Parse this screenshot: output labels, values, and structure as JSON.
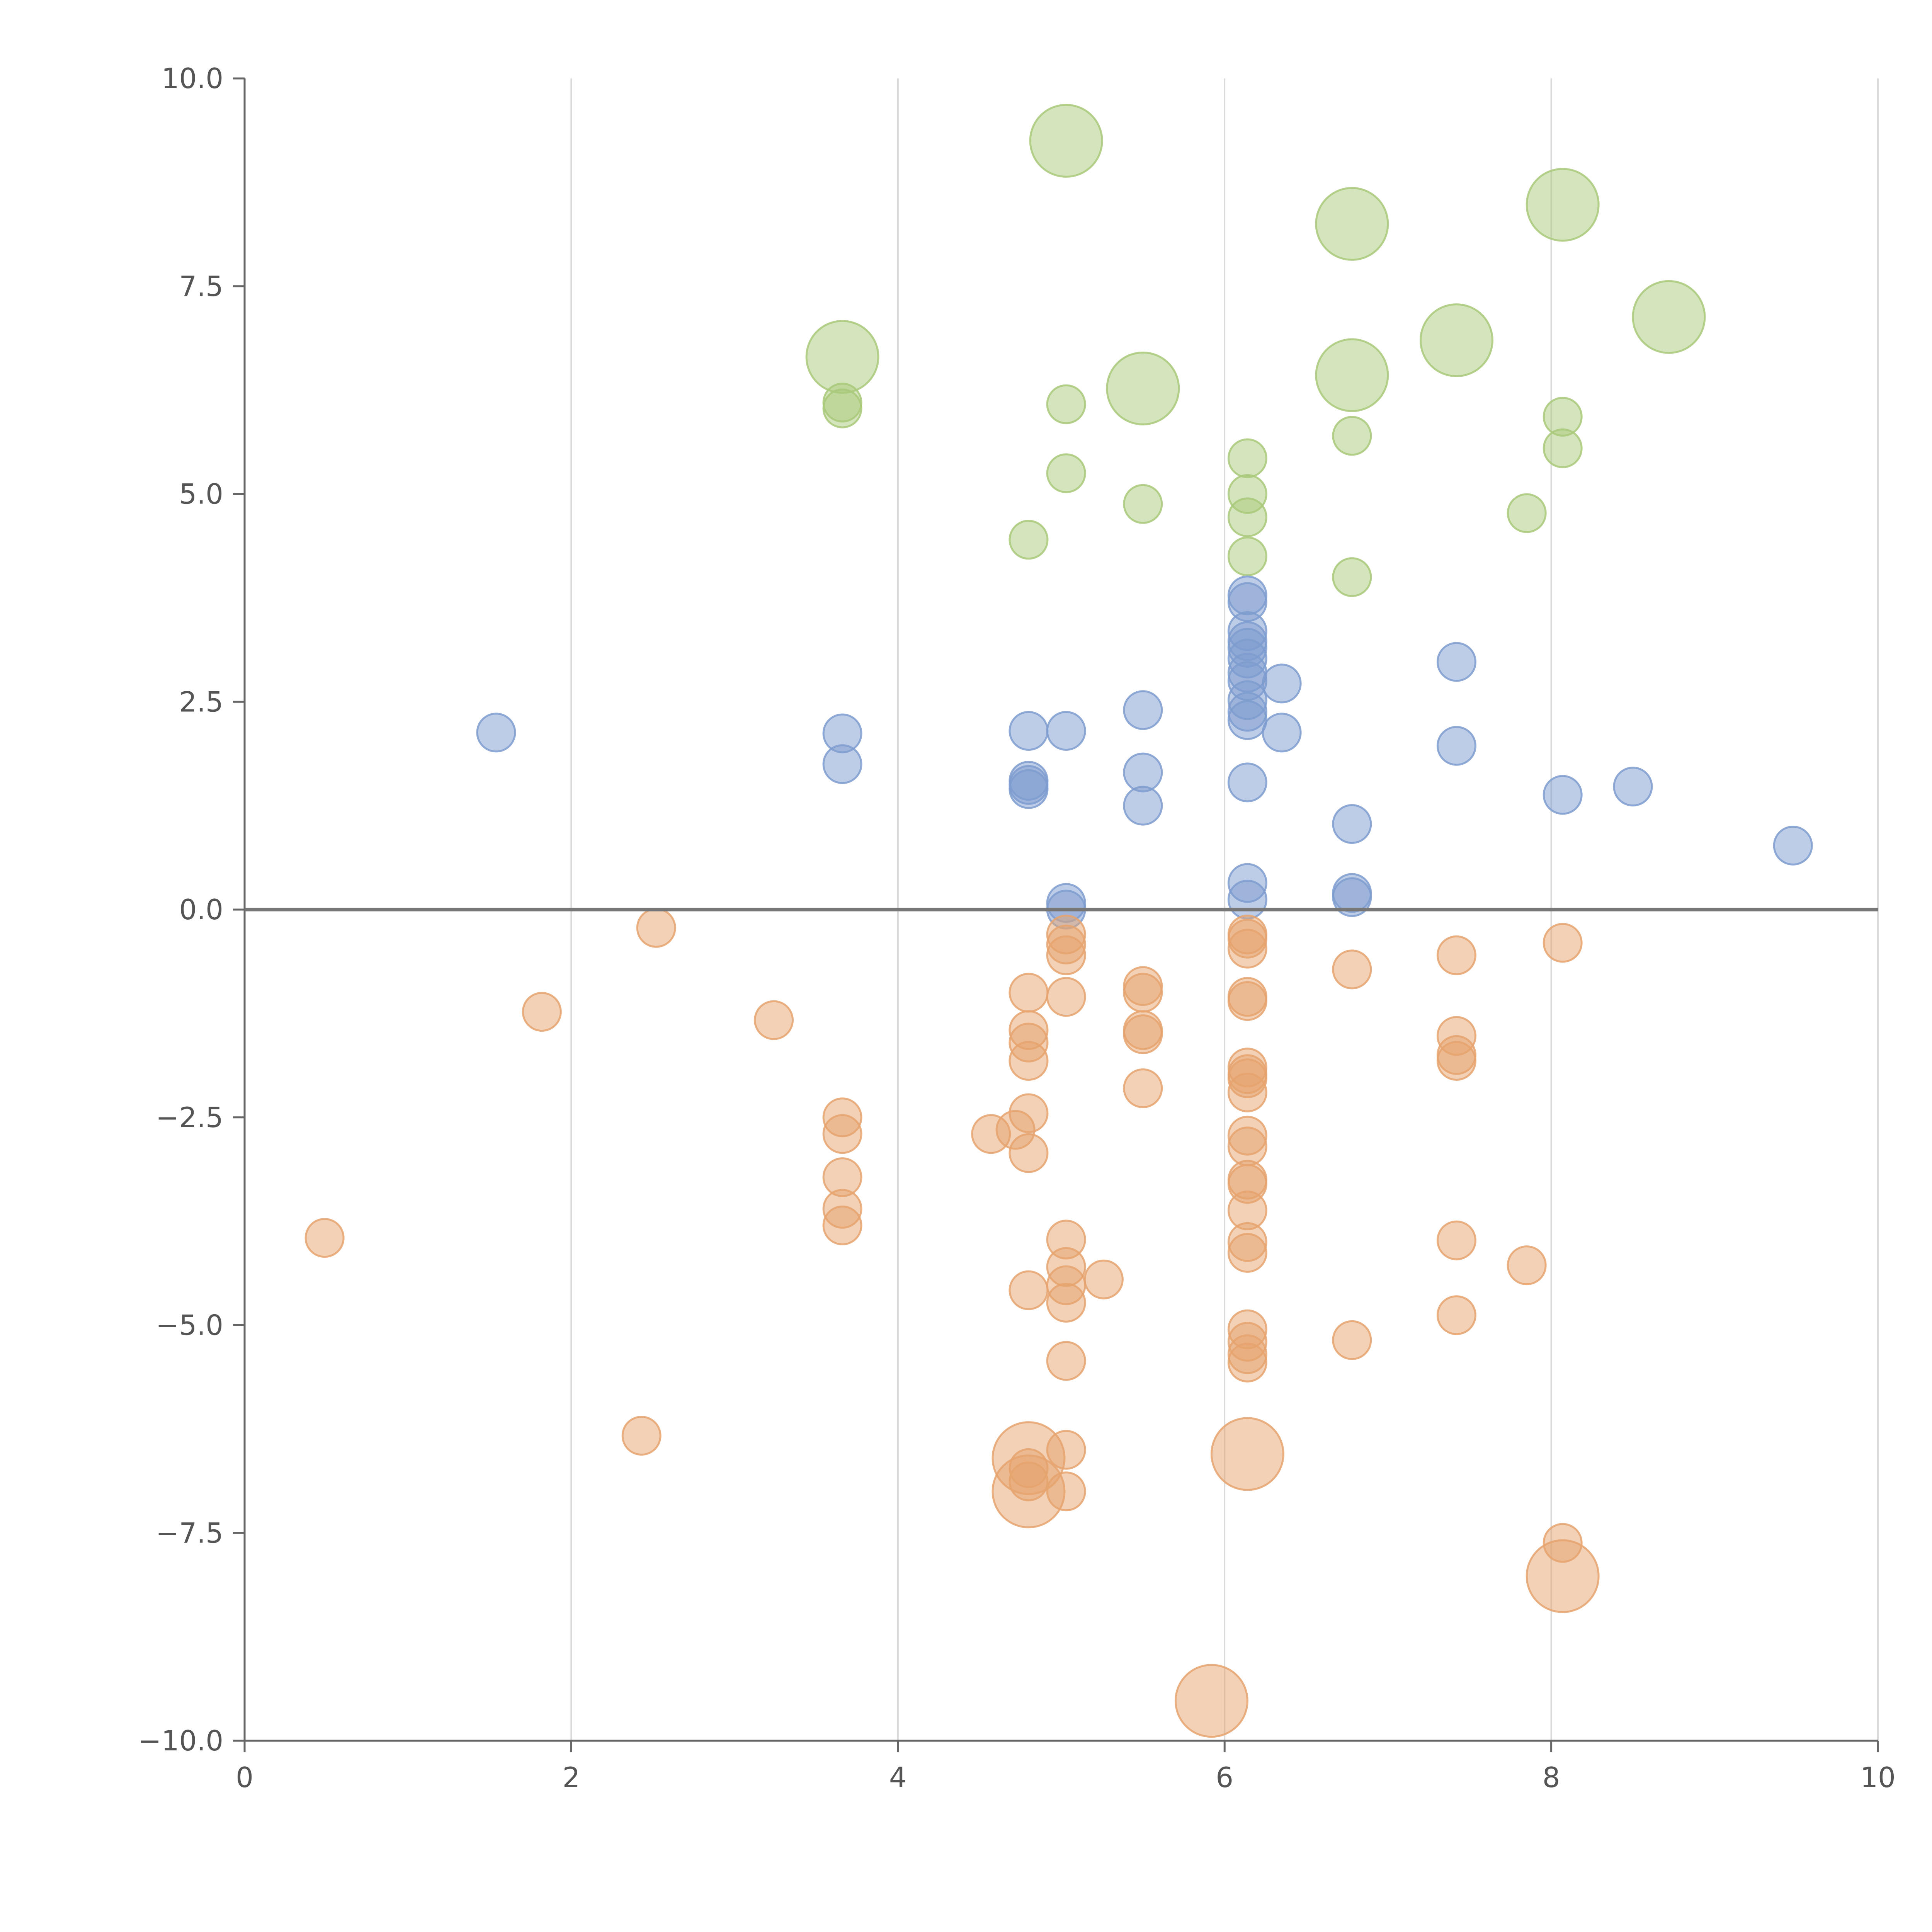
{
  "chart_data": {
    "type": "scatter",
    "subtype": "bubble",
    "title": "",
    "xlabel": "",
    "ylabel": "",
    "xlim": [
      0,
      10
    ],
    "ylim": [
      -10,
      10
    ],
    "x_ticks": [
      0,
      2,
      4,
      6,
      8,
      10
    ],
    "x_tick_labels": [
      "0",
      "2",
      "4",
      "6",
      "8",
      "10"
    ],
    "y_ticks": [
      -10,
      -7.5,
      -5,
      -2.5,
      0,
      2.5,
      5,
      7.5,
      10
    ],
    "y_tick_labels": [
      "−10.0",
      "−7.5",
      "−5.0",
      "−2.5",
      "0.0",
      "2.5",
      "5.0",
      "7.5",
      "10.0"
    ],
    "grid": "vertical",
    "legend": "none",
    "reference_line": {
      "y": 0
    },
    "series": [
      {
        "name": "green",
        "color": "#a9c97a",
        "points": [
          {
            "x": 5.03,
            "y": 9.25,
            "size": 3
          },
          {
            "x": 6.78,
            "y": 8.25,
            "size": 3
          },
          {
            "x": 8.07,
            "y": 8.48,
            "size": 3
          },
          {
            "x": 8.72,
            "y": 7.13,
            "size": 3
          },
          {
            "x": 7.42,
            "y": 6.85,
            "size": 3
          },
          {
            "x": 6.78,
            "y": 6.43,
            "size": 3
          },
          {
            "x": 5.5,
            "y": 6.27,
            "size": 3
          },
          {
            "x": 3.66,
            "y": 6.65,
            "size": 3
          },
          {
            "x": 3.66,
            "y": 6.1,
            "size": 1
          },
          {
            "x": 3.66,
            "y": 6.03,
            "size": 1
          },
          {
            "x": 5.03,
            "y": 6.08,
            "size": 1
          },
          {
            "x": 8.07,
            "y": 5.93,
            "size": 1
          },
          {
            "x": 8.07,
            "y": 5.55,
            "size": 1
          },
          {
            "x": 6.78,
            "y": 5.7,
            "size": 1
          },
          {
            "x": 6.14,
            "y": 5.43,
            "size": 1
          },
          {
            "x": 5.03,
            "y": 5.25,
            "size": 1
          },
          {
            "x": 6.14,
            "y": 5.0,
            "size": 1
          },
          {
            "x": 5.5,
            "y": 4.88,
            "size": 1
          },
          {
            "x": 7.85,
            "y": 4.77,
            "size": 1
          },
          {
            "x": 6.14,
            "y": 4.72,
            "size": 1
          },
          {
            "x": 4.8,
            "y": 4.45,
            "size": 1
          },
          {
            "x": 6.14,
            "y": 4.25,
            "size": 1
          },
          {
            "x": 6.78,
            "y": 4.0,
            "size": 1
          }
        ]
      },
      {
        "name": "blue",
        "color": "#7e9ccf",
        "points": [
          {
            "x": 6.14,
            "y": 3.78,
            "size": 1
          },
          {
            "x": 6.14,
            "y": 3.7,
            "size": 1
          },
          {
            "x": 6.14,
            "y": 3.35,
            "size": 1
          },
          {
            "x": 6.14,
            "y": 3.23,
            "size": 1
          },
          {
            "x": 6.14,
            "y": 3.15,
            "size": 1
          },
          {
            "x": 6.14,
            "y": 3.02,
            "size": 1
          },
          {
            "x": 6.14,
            "y": 2.85,
            "size": 1
          },
          {
            "x": 6.14,
            "y": 2.75,
            "size": 1
          },
          {
            "x": 6.14,
            "y": 2.52,
            "size": 1
          },
          {
            "x": 6.14,
            "y": 2.38,
            "size": 1
          },
          {
            "x": 6.14,
            "y": 2.28,
            "size": 1
          },
          {
            "x": 6.35,
            "y": 2.72,
            "size": 1
          },
          {
            "x": 6.35,
            "y": 2.13,
            "size": 1
          },
          {
            "x": 7.42,
            "y": 2.98,
            "size": 1
          },
          {
            "x": 7.42,
            "y": 1.97,
            "size": 1
          },
          {
            "x": 5.5,
            "y": 2.4,
            "size": 1
          },
          {
            "x": 5.5,
            "y": 1.65,
            "size": 1
          },
          {
            "x": 5.5,
            "y": 1.25,
            "size": 1
          },
          {
            "x": 5.03,
            "y": 2.15,
            "size": 1
          },
          {
            "x": 4.8,
            "y": 2.15,
            "size": 1
          },
          {
            "x": 4.8,
            "y": 1.55,
            "size": 1
          },
          {
            "x": 4.8,
            "y": 1.5,
            "size": 1
          },
          {
            "x": 4.8,
            "y": 1.45,
            "size": 1
          },
          {
            "x": 3.66,
            "y": 2.12,
            "size": 1
          },
          {
            "x": 3.66,
            "y": 1.75,
            "size": 1
          },
          {
            "x": 1.54,
            "y": 2.13,
            "size": 1
          },
          {
            "x": 6.14,
            "y": 1.53,
            "size": 1
          },
          {
            "x": 8.07,
            "y": 1.38,
            "size": 1
          },
          {
            "x": 8.5,
            "y": 1.48,
            "size": 1
          },
          {
            "x": 6.78,
            "y": 1.03,
            "size": 1
          },
          {
            "x": 9.48,
            "y": 0.77,
            "size": 1
          },
          {
            "x": 6.14,
            "y": 0.32,
            "size": 1
          },
          {
            "x": 6.14,
            "y": 0.12,
            "size": 1
          },
          {
            "x": 6.78,
            "y": 0.2,
            "size": 1
          },
          {
            "x": 6.78,
            "y": 0.15,
            "size": 1
          },
          {
            "x": 5.03,
            "y": 0.08,
            "size": 1
          },
          {
            "x": 5.03,
            "y": 0.0,
            "size": 1
          }
        ]
      },
      {
        "name": "orange",
        "color": "#e6a36e",
        "points": [
          {
            "x": 2.52,
            "y": -0.22,
            "size": 1
          },
          {
            "x": 1.82,
            "y": -1.23,
            "size": 1
          },
          {
            "x": 3.24,
            "y": -1.33,
            "size": 1
          },
          {
            "x": 0.49,
            "y": -3.95,
            "size": 1
          },
          {
            "x": 2.43,
            "y": -6.33,
            "size": 1
          },
          {
            "x": 3.66,
            "y": -2.5,
            "size": 1
          },
          {
            "x": 3.66,
            "y": -2.7,
            "size": 1
          },
          {
            "x": 3.66,
            "y": -3.22,
            "size": 1
          },
          {
            "x": 3.66,
            "y": -3.6,
            "size": 1
          },
          {
            "x": 3.66,
            "y": -3.8,
            "size": 1
          },
          {
            "x": 4.57,
            "y": -2.7,
            "size": 1
          },
          {
            "x": 4.72,
            "y": -2.65,
            "size": 1
          },
          {
            "x": 4.8,
            "y": -2.45,
            "size": 1
          },
          {
            "x": 4.8,
            "y": -2.93,
            "size": 1
          },
          {
            "x": 4.8,
            "y": -1.0,
            "size": 1
          },
          {
            "x": 4.8,
            "y": -1.45,
            "size": 1
          },
          {
            "x": 4.8,
            "y": -1.6,
            "size": 1
          },
          {
            "x": 4.8,
            "y": -1.82,
            "size": 1
          },
          {
            "x": 4.8,
            "y": -4.58,
            "size": 1
          },
          {
            "x": 5.03,
            "y": -0.3,
            "size": 1
          },
          {
            "x": 5.03,
            "y": -0.42,
            "size": 1
          },
          {
            "x": 5.03,
            "y": -0.55,
            "size": 1
          },
          {
            "x": 5.03,
            "y": -1.05,
            "size": 1
          },
          {
            "x": 5.03,
            "y": -3.97,
            "size": 1
          },
          {
            "x": 5.03,
            "y": -4.3,
            "size": 1
          },
          {
            "x": 5.03,
            "y": -4.52,
            "size": 1
          },
          {
            "x": 5.03,
            "y": -4.73,
            "size": 1
          },
          {
            "x": 5.26,
            "y": -4.45,
            "size": 1
          },
          {
            "x": 5.03,
            "y": -5.43,
            "size": 1
          },
          {
            "x": 5.03,
            "y": -6.5,
            "size": 1
          },
          {
            "x": 5.03,
            "y": -7.0,
            "size": 1
          },
          {
            "x": 5.5,
            "y": -0.92,
            "size": 1
          },
          {
            "x": 5.5,
            "y": -1.0,
            "size": 1
          },
          {
            "x": 5.5,
            "y": -1.45,
            "size": 1
          },
          {
            "x": 5.5,
            "y": -1.5,
            "size": 1
          },
          {
            "x": 5.5,
            "y": -2.15,
            "size": 1
          },
          {
            "x": 6.14,
            "y": -0.3,
            "size": 1
          },
          {
            "x": 6.14,
            "y": -0.35,
            "size": 1
          },
          {
            "x": 6.14,
            "y": -0.47,
            "size": 1
          },
          {
            "x": 6.14,
            "y": -1.05,
            "size": 1
          },
          {
            "x": 6.14,
            "y": -1.1,
            "size": 1
          },
          {
            "x": 6.14,
            "y": -1.9,
            "size": 1
          },
          {
            "x": 6.14,
            "y": -1.98,
            "size": 1
          },
          {
            "x": 6.14,
            "y": -2.03,
            "size": 1
          },
          {
            "x": 6.14,
            "y": -2.2,
            "size": 1
          },
          {
            "x": 6.14,
            "y": -2.72,
            "size": 1
          },
          {
            "x": 6.14,
            "y": -2.85,
            "size": 1
          },
          {
            "x": 6.14,
            "y": -3.25,
            "size": 1
          },
          {
            "x": 6.14,
            "y": -3.3,
            "size": 1
          },
          {
            "x": 6.14,
            "y": -3.62,
            "size": 1
          },
          {
            "x": 6.14,
            "y": -4.0,
            "size": 1
          },
          {
            "x": 6.14,
            "y": -4.13,
            "size": 1
          },
          {
            "x": 6.14,
            "y": -5.05,
            "size": 1
          },
          {
            "x": 6.14,
            "y": -5.2,
            "size": 1
          },
          {
            "x": 6.14,
            "y": -5.35,
            "size": 1
          },
          {
            "x": 6.14,
            "y": -5.45,
            "size": 1
          },
          {
            "x": 6.78,
            "y": -0.72,
            "size": 1
          },
          {
            "x": 6.78,
            "y": -5.18,
            "size": 1
          },
          {
            "x": 7.42,
            "y": -0.55,
            "size": 1
          },
          {
            "x": 7.42,
            "y": -1.52,
            "size": 1
          },
          {
            "x": 7.42,
            "y": -1.75,
            "size": 1
          },
          {
            "x": 7.42,
            "y": -1.82,
            "size": 1
          },
          {
            "x": 7.42,
            "y": -3.98,
            "size": 1
          },
          {
            "x": 7.42,
            "y": -4.88,
            "size": 1
          },
          {
            "x": 7.85,
            "y": -4.28,
            "size": 1
          },
          {
            "x": 8.07,
            "y": -0.4,
            "size": 1
          },
          {
            "x": 8.07,
            "y": -7.62,
            "size": 1
          },
          {
            "x": 4.8,
            "y": -6.72,
            "size": 1
          },
          {
            "x": 4.8,
            "y": -6.88,
            "size": 1
          },
          {
            "x": 4.8,
            "y": -6.6,
            "size": 3
          },
          {
            "x": 4.8,
            "y": -7.0,
            "size": 3
          },
          {
            "x": 6.14,
            "y": -6.55,
            "size": 3
          },
          {
            "x": 8.07,
            "y": -8.02,
            "size": 3
          },
          {
            "x": 5.92,
            "y": -9.52,
            "size": 3
          }
        ]
      }
    ]
  }
}
